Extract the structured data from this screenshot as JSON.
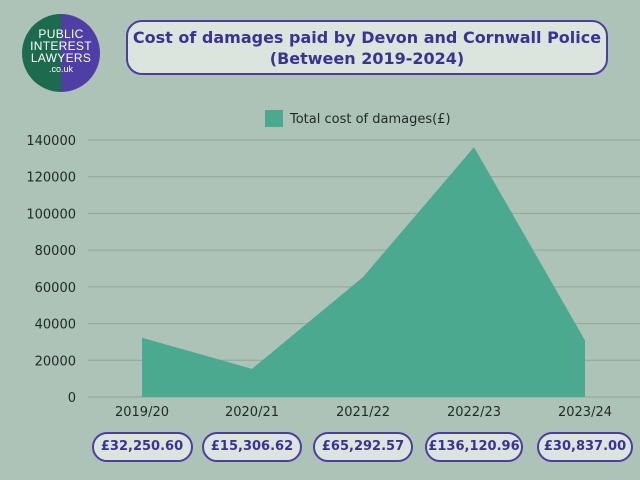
{
  "logo": {
    "line1": "PUBLIC",
    "line2": "INTEREST",
    "line3": "LAWYERS",
    "line4": ".co.uk"
  },
  "colors": {
    "area": "#4aa98f",
    "accent": "#4a3fa0",
    "background": "#adc3b7"
  },
  "pills": [
    "£32,250.60",
    "£15,306.62",
    "£65,292.57",
    "£136,120.96",
    "£30,837.00"
  ],
  "chart_data": {
    "type": "area",
    "title": "Cost of damages paid by Devon and Cornwall Police",
    "subtitle": "(Between 2019-2024)",
    "categories": [
      "2019/20",
      "2020/21",
      "2021/22",
      "2022/23",
      "2023/24"
    ],
    "series": [
      {
        "name": "Total cost of damages(£)",
        "values": [
          32250.6,
          15306.62,
          65292.57,
          136120.96,
          30837.0
        ]
      }
    ],
    "yticks": [
      0,
      20000,
      40000,
      60000,
      80000,
      100000,
      120000,
      140000
    ],
    "ylim": [
      0,
      140000
    ],
    "grid": true,
    "legend": "top-center"
  }
}
